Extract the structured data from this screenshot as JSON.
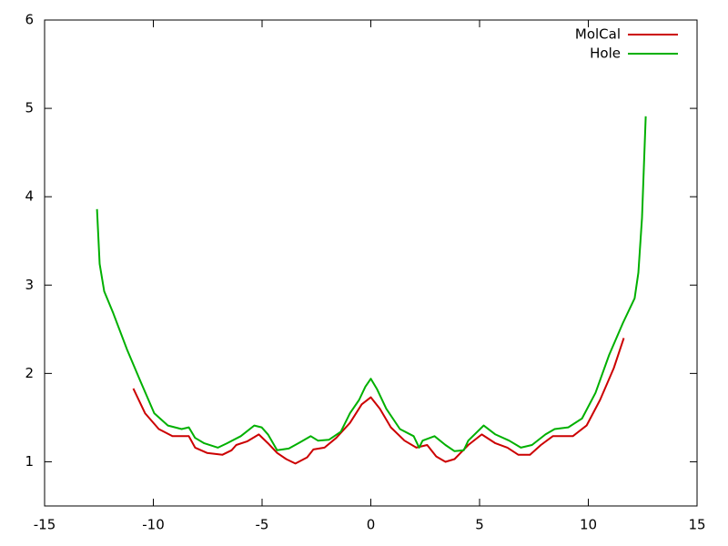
{
  "chart_data": {
    "type": "line",
    "xlim": [
      -15,
      15
    ],
    "xticks": [
      -15,
      -10,
      -5,
      0,
      5,
      10,
      15
    ],
    "ylim": [
      0.5,
      6
    ],
    "yticks": [
      1,
      2,
      3,
      4,
      5,
      6
    ],
    "legend": "top-right",
    "series": [
      {
        "name": "MolCal",
        "color": "#cc0000",
        "x": [
          -10.92,
          -10.38,
          -9.75,
          -9.12,
          -8.37,
          -8.08,
          -7.53,
          -6.82,
          -6.4,
          -6.19,
          -5.69,
          -5.15,
          -4.73,
          -4.31,
          -3.89,
          -3.47,
          -2.93,
          -2.64,
          -2.13,
          -1.59,
          -0.96,
          -0.42,
          0,
          0.42,
          0.92,
          1.55,
          2.09,
          2.59,
          3.01,
          3.43,
          3.85,
          4.48,
          5.1,
          5.73,
          6.28,
          6.78,
          7.32,
          7.82,
          8.37,
          9.29,
          9.92,
          10.54,
          11.17,
          11.63
        ],
        "values": [
          1.83,
          1.55,
          1.37,
          1.29,
          1.29,
          1.16,
          1.1,
          1.08,
          1.13,
          1.19,
          1.23,
          1.31,
          1.21,
          1.1,
          1.03,
          0.98,
          1.05,
          1.14,
          1.16,
          1.27,
          1.44,
          1.65,
          1.73,
          1.6,
          1.39,
          1.24,
          1.16,
          1.19,
          1.06,
          1.0,
          1.03,
          1.19,
          1.31,
          1.21,
          1.16,
          1.08,
          1.08,
          1.19,
          1.29,
          1.29,
          1.41,
          1.7,
          2.06,
          2.4
        ]
      },
      {
        "name": "Hole",
        "color": "#00b000",
        "x": [
          -12.59,
          -12.47,
          -12.26,
          -11.84,
          -11.21,
          -10.59,
          -9.96,
          -9.33,
          -8.7,
          -8.37,
          -8.08,
          -7.66,
          -7.03,
          -6.61,
          -5.98,
          -5.36,
          -5.02,
          -4.73,
          -4.31,
          -3.77,
          -3.26,
          -2.76,
          -2.43,
          -1.92,
          -1.38,
          -0.96,
          -0.54,
          -0.25,
          0,
          0.29,
          0.71,
          1.34,
          1.97,
          2.22,
          2.38,
          2.93,
          3.43,
          3.85,
          4.27,
          4.48,
          5.19,
          5.73,
          6.36,
          6.9,
          7.41,
          8.03,
          8.45,
          9.08,
          9.71,
          10.33,
          10.96,
          11.59,
          12.13,
          12.3,
          12.47,
          12.64
        ],
        "values": [
          3.86,
          3.24,
          2.93,
          2.68,
          2.27,
          1.91,
          1.55,
          1.41,
          1.37,
          1.39,
          1.27,
          1.21,
          1.16,
          1.21,
          1.29,
          1.41,
          1.39,
          1.31,
          1.13,
          1.15,
          1.22,
          1.29,
          1.24,
          1.25,
          1.34,
          1.55,
          1.7,
          1.85,
          1.94,
          1.82,
          1.6,
          1.37,
          1.29,
          1.16,
          1.24,
          1.29,
          1.19,
          1.12,
          1.13,
          1.24,
          1.41,
          1.31,
          1.24,
          1.16,
          1.19,
          1.31,
          1.37,
          1.39,
          1.49,
          1.78,
          2.21,
          2.57,
          2.85,
          3.14,
          3.76,
          4.91
        ]
      }
    ]
  }
}
